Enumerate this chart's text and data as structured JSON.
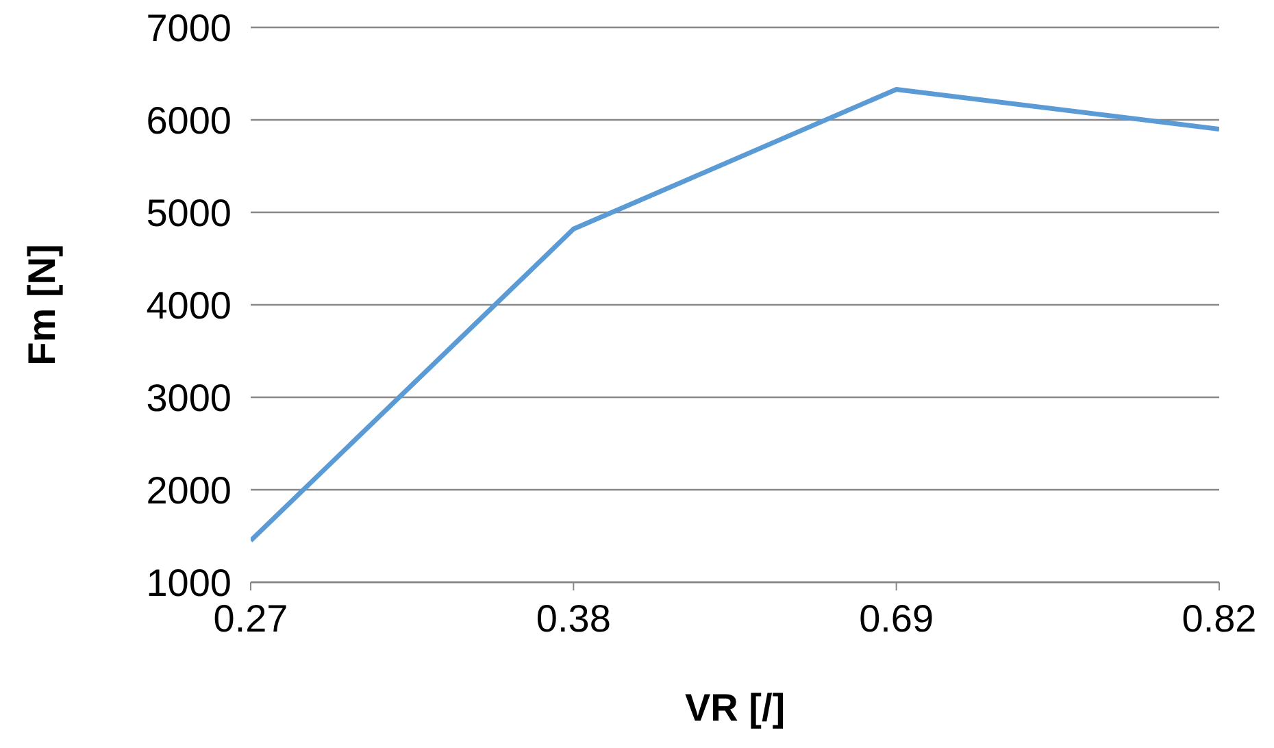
{
  "chart_data": {
    "type": "line",
    "xlabel": "VR [/]",
    "ylabel": "Fm [N]",
    "categories": [
      "0.27",
      "0.38",
      "0.69",
      "0.82"
    ],
    "series": [
      {
        "color": "#5b9bd5",
        "values": [
          1450,
          4820,
          6330,
          5900
        ]
      }
    ],
    "ylim": [
      1000,
      7000
    ],
    "yticks": [
      1000,
      2000,
      3000,
      4000,
      5000,
      6000,
      7000
    ],
    "grid": "y",
    "legend": false,
    "marker": "none",
    "line_style": "solid"
  }
}
